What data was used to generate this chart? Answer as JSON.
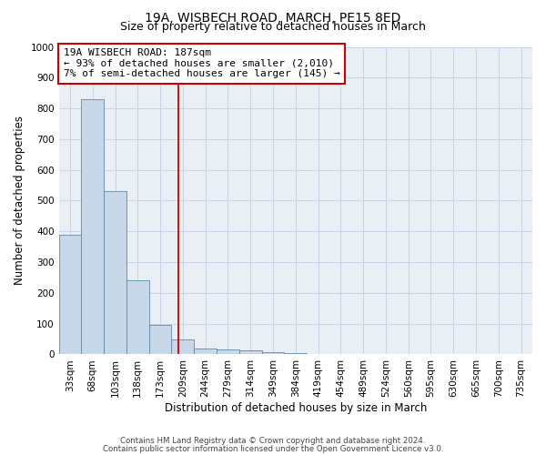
{
  "title1": "19A, WISBECH ROAD, MARCH, PE15 8ED",
  "title2": "Size of property relative to detached houses in March",
  "xlabel": "Distribution of detached houses by size in March",
  "ylabel": "Number of detached properties",
  "footnote1": "Contains HM Land Registry data © Crown copyright and database right 2024.",
  "footnote2": "Contains public sector information licensed under the Open Government Licence v3.0.",
  "bin_labels": [
    "33sqm",
    "68sqm",
    "103sqm",
    "138sqm",
    "173sqm",
    "209sqm",
    "244sqm",
    "279sqm",
    "314sqm",
    "349sqm",
    "384sqm",
    "419sqm",
    "454sqm",
    "489sqm",
    "524sqm",
    "560sqm",
    "595sqm",
    "630sqm",
    "665sqm",
    "700sqm",
    "735sqm"
  ],
  "bar_values": [
    390,
    830,
    530,
    240,
    95,
    50,
    20,
    15,
    12,
    8,
    5,
    0,
    0,
    0,
    0,
    0,
    0,
    0,
    0,
    0,
    0
  ],
  "bar_color": "#c8d8e8",
  "bar_edge_color": "#5a8aaa",
  "red_line_x": 4.82,
  "annotation_line1": "19A WISBECH ROAD: 187sqm",
  "annotation_line2": "← 93% of detached houses are smaller (2,010)",
  "annotation_line3": "7% of semi-detached houses are larger (145) →",
  "annotation_box_color": "#ffffff",
  "annotation_box_edge": "#cc0000",
  "ylim": [
    0,
    1000
  ],
  "yticks": [
    0,
    100,
    200,
    300,
    400,
    500,
    600,
    700,
    800,
    900,
    1000
  ],
  "grid_color": "#c5d5e5",
  "background_color": "#eaeff5",
  "title1_fontsize": 10,
  "title2_fontsize": 9,
  "xlabel_fontsize": 8.5,
  "ylabel_fontsize": 8.5,
  "tick_fontsize": 7.5,
  "annot_fontsize": 8
}
